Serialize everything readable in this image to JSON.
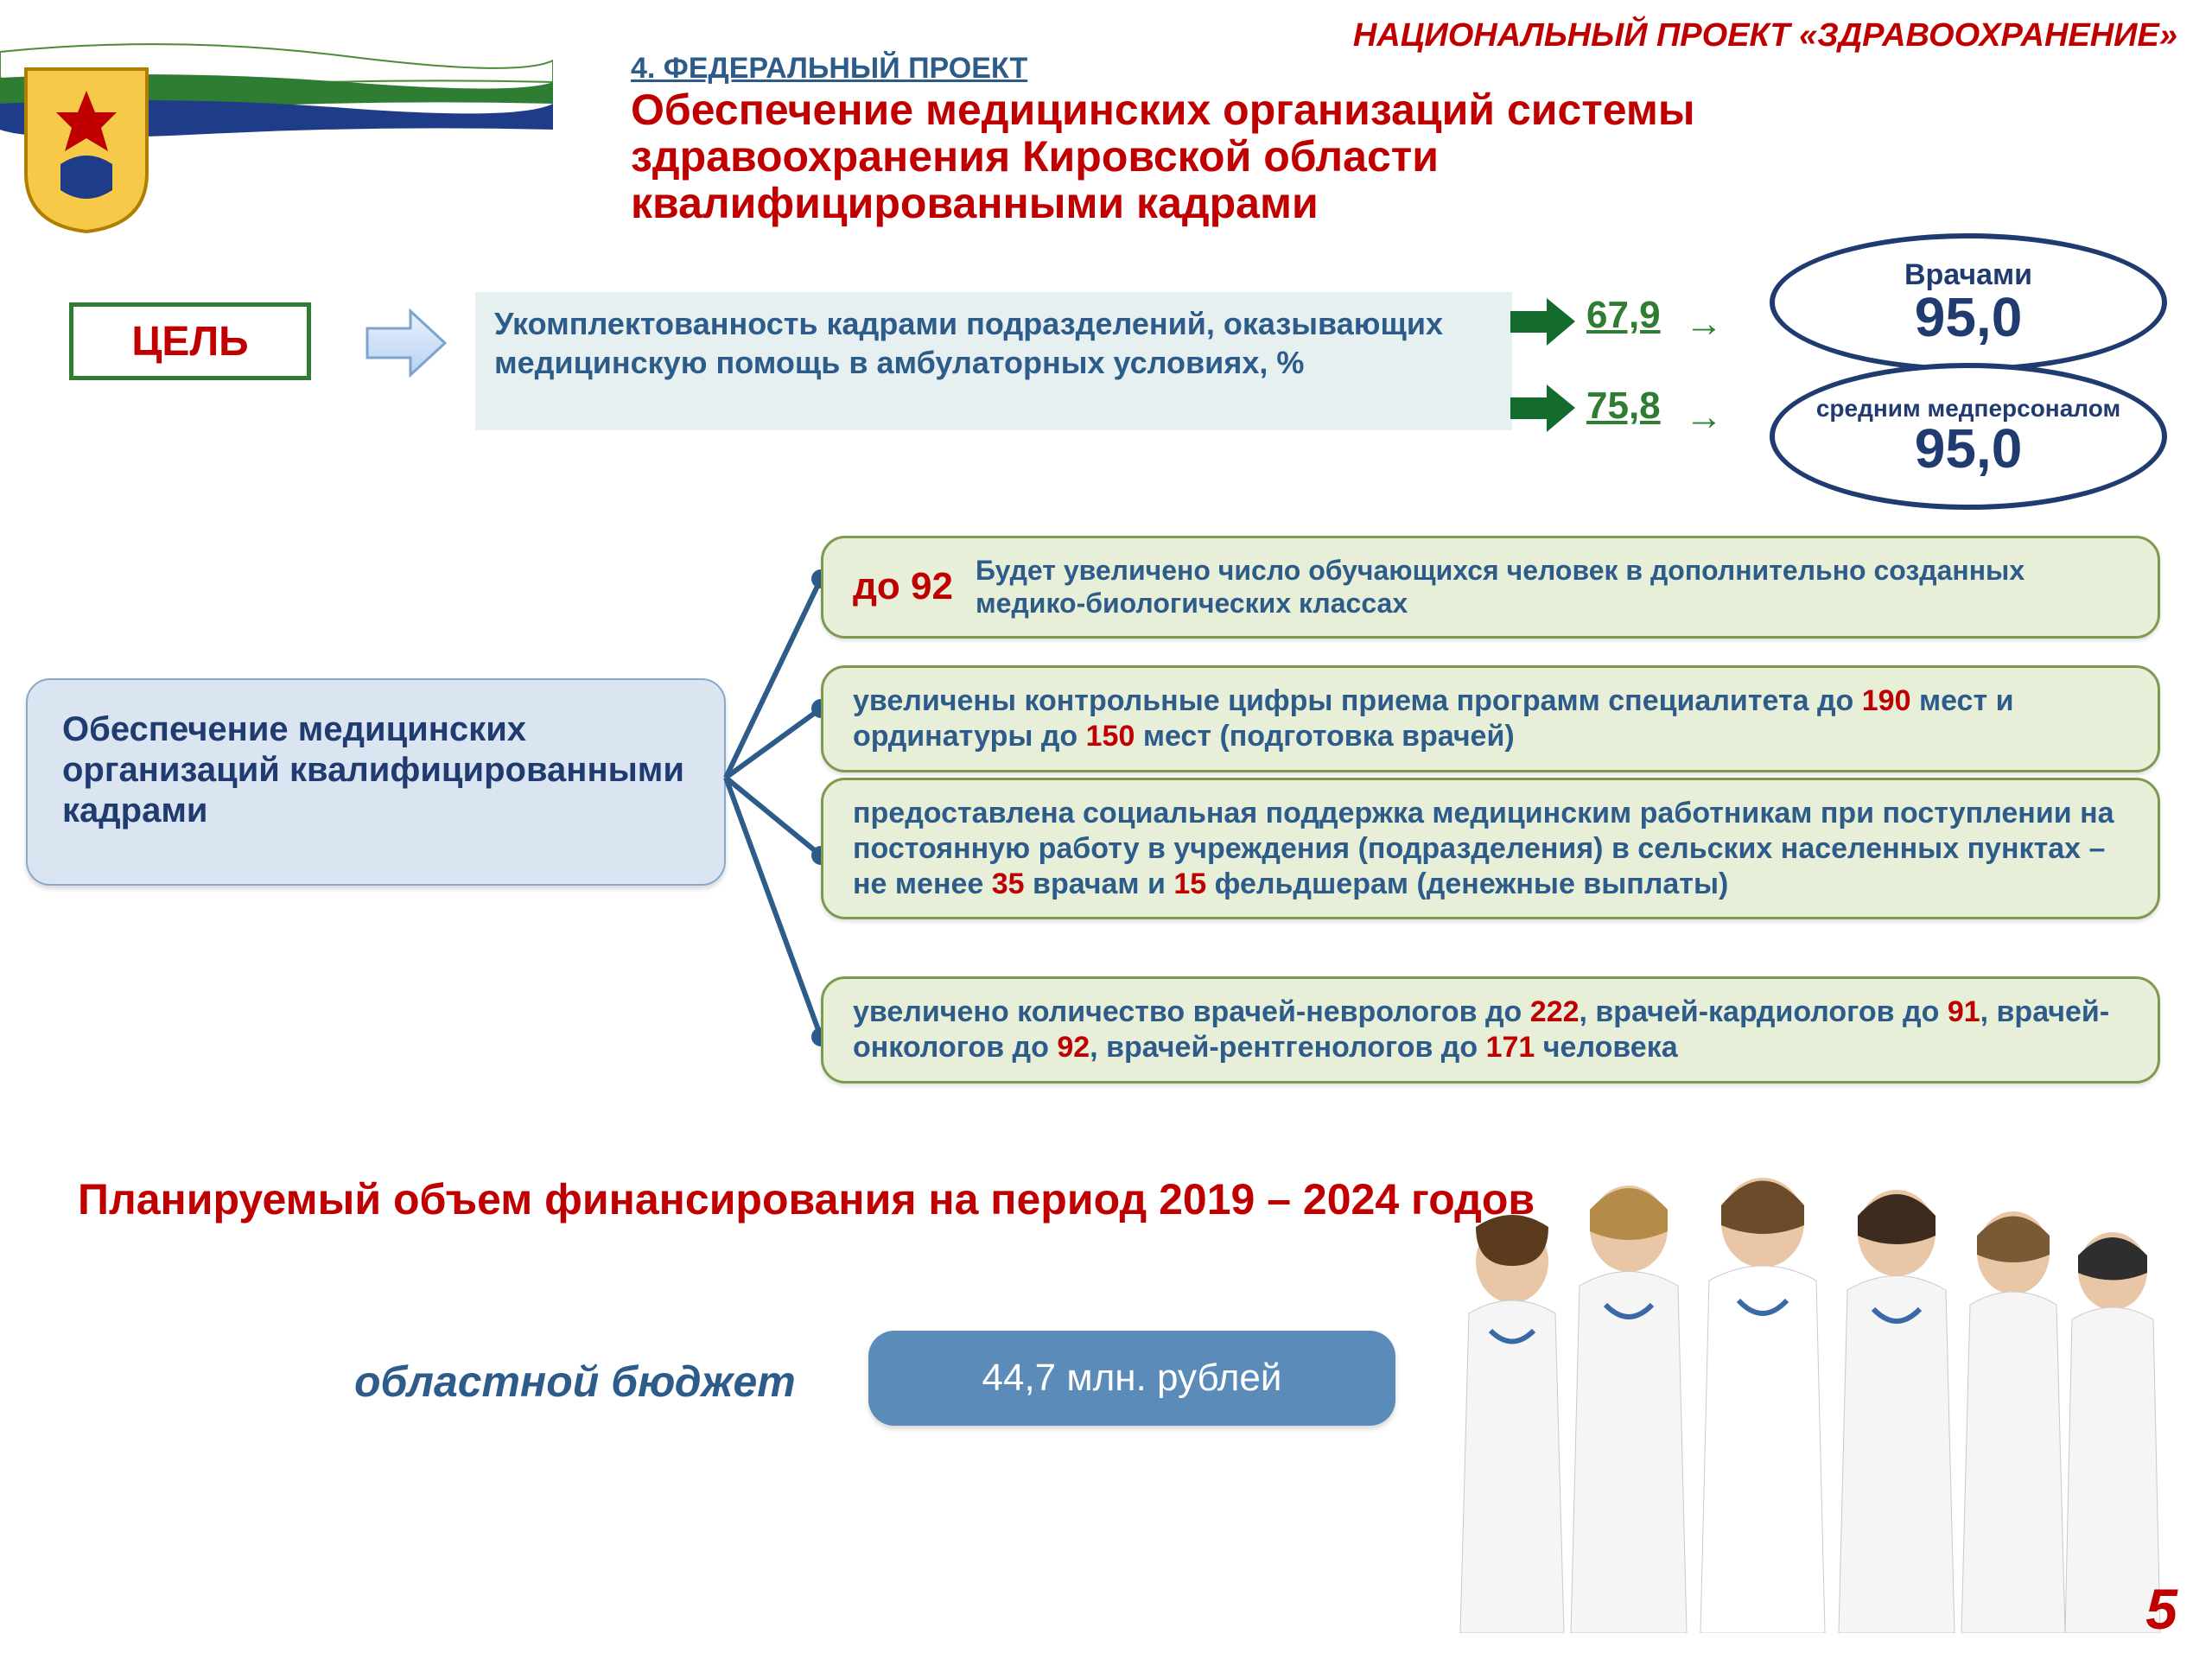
{
  "header_right": "НАЦИОНАЛЬНЫЙ ПРОЕКТ «ЗДРАВООХРАНЕНИЕ»",
  "section_num": "4. ФЕДЕРАЛЬНЫЙ ПРОЕКТ",
  "main_title": "Обеспечение медицинских организаций системы здравоохранения Кировской области квалифицированными кадрами",
  "goal_label": "ЦЕЛЬ",
  "goal_text": "Укомплектованность кадрами подразделений, оказывающих медицинскую помощь в амбулаторных условиях, %",
  "metrics": {
    "val1": "67,9",
    "val2": "75,8",
    "oval1_label": "Врачами",
    "oval1_num": "95,0",
    "oval2_label": "средним медперсоналом",
    "oval2_num": "95,0"
  },
  "left_block": "Обеспечение медицинских организаций квалифицированными кадрами",
  "bullets": {
    "b1_pre": "до 92",
    "b1_txt": "Будет увеличено число обучающихся человек  в дополнительно созданных медико-биологических классах",
    "b2_html": "увеличены контрольные цифры приема программ специалитета до <span class=\"red\">190</span> мест и ординатуры до <span class=\"red\">150</span> мест (подготовка врачей)",
    "b3_html": "предоставлена социальная поддержка медицинским работникам при поступлении на постоянную работу в учреждения (подразделения) в сельских населенных пунктах –<br>не менее <span class=\"red\">35</span> врачам и <span class=\"red\">15</span> фельдшерам (денежные выплаты)",
    "b4_html": "увеличено количество врачей-неврологов  до <span class=\"red\">222</span>, врачей-кардиологов до <span class=\"red\">91</span>, врачей-онкологов  до <span class=\"red\">92</span>, врачей-рентгенологов  до <span class=\"red\">171</span> человека"
  },
  "funding_title": "Планируемый объем финансирования на период 2019 – 2024 годов",
  "regional_label": "областной бюджет",
  "budget_value": "44,7 млн. рублей",
  "page_num": "5",
  "colors": {
    "accent_red": "#c00000",
    "accent_blue": "#2e5c8a",
    "dark_blue": "#1f3b70",
    "green": "#2e7d32",
    "bullet_bg": "#e8efd9",
    "bullet_border": "#7e9a4f",
    "leftblock_bg": "#dbe5f1",
    "pill_bg": "#5b8bb8"
  }
}
